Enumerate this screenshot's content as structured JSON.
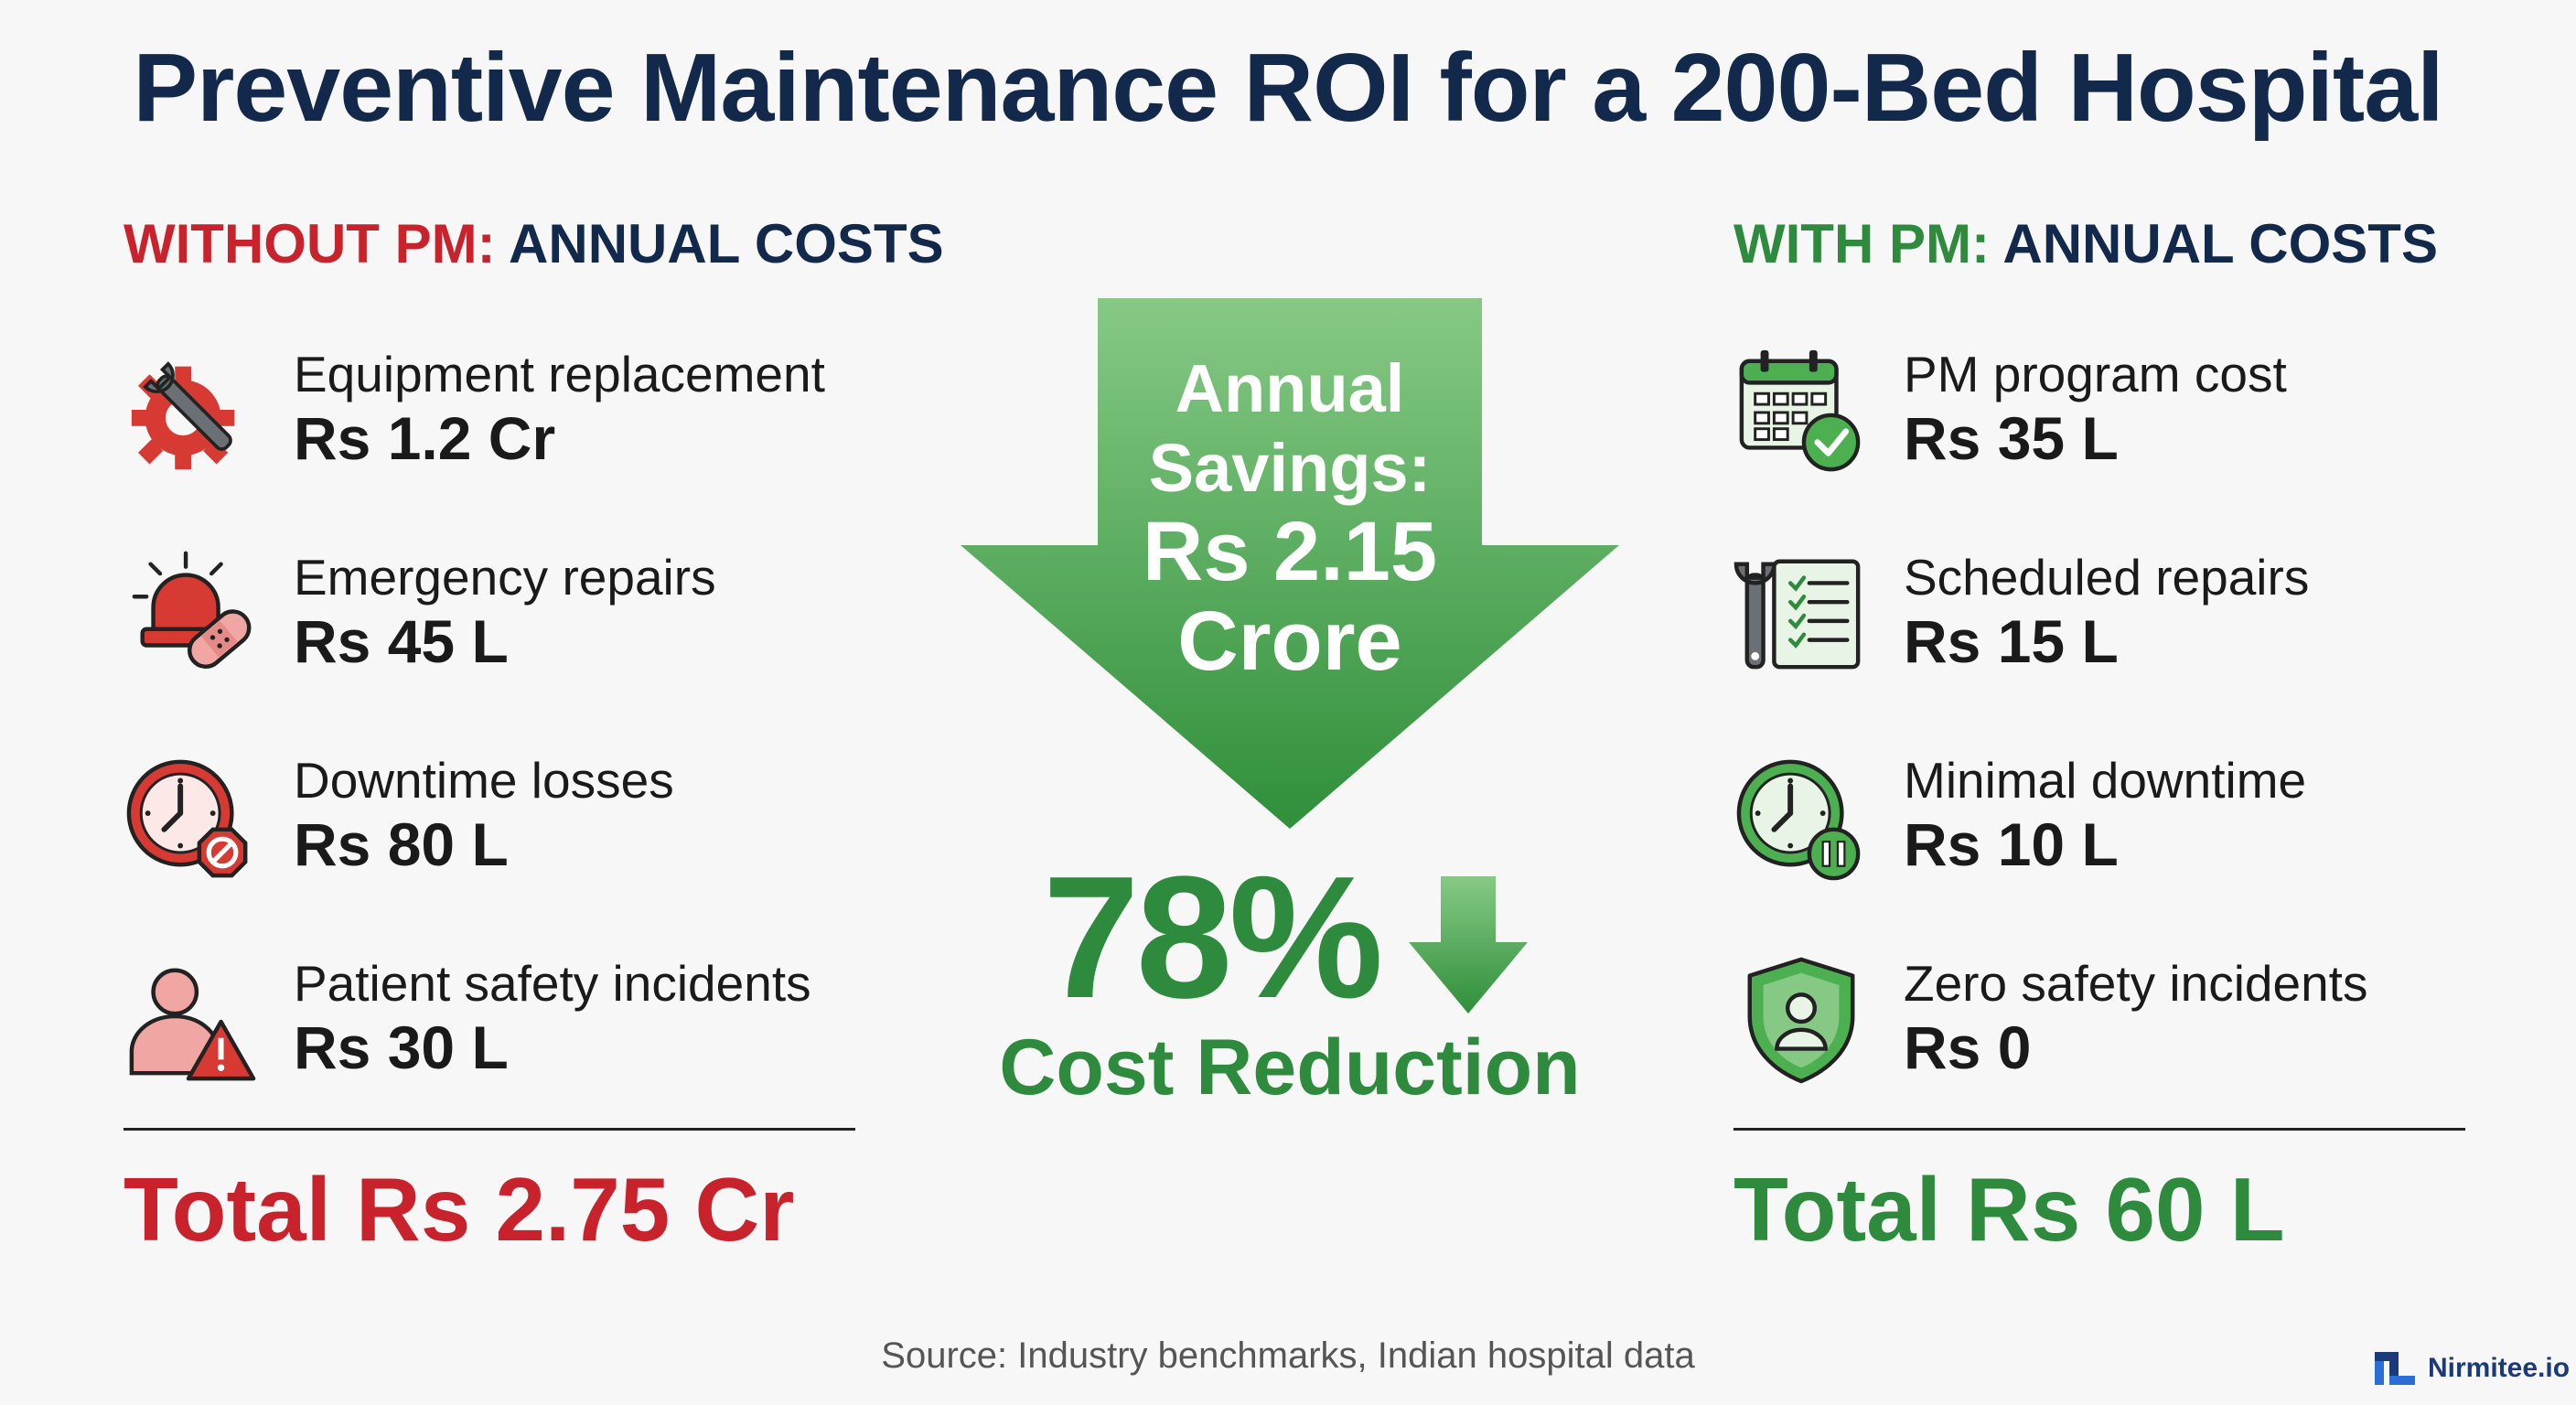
{
  "title": "Preventive Maintenance ROI for a 200-Bed Hospital",
  "left": {
    "header_accent": "WITHOUT PM:",
    "header_rest": " ANNUAL COSTS",
    "items": [
      {
        "label": "Equipment replacement",
        "value": "Rs 1.2 Cr",
        "icon": "gear-wrench-icon"
      },
      {
        "label": "Emergency repairs",
        "value": "Rs 45 L",
        "icon": "alarm-bandage-icon"
      },
      {
        "label": "Downtime losses",
        "value": "Rs 80 L",
        "icon": "clock-stop-icon"
      },
      {
        "label": "Patient safety incidents",
        "value": "Rs 30 L",
        "icon": "person-warning-icon"
      }
    ],
    "total": "Total Rs 2.75 Cr"
  },
  "center": {
    "savings_line1": "Annual",
    "savings_line2": "Savings:",
    "savings_line3": "Rs 2.15",
    "savings_line4": "Crore",
    "percent": "78%",
    "percent_label": "Cost Reduction"
  },
  "right": {
    "header_accent": "WITH PM:",
    "header_rest": " ANNUAL COSTS",
    "items": [
      {
        "label": "PM program cost",
        "value": "Rs 35 L",
        "icon": "calendar-check-icon"
      },
      {
        "label": "Scheduled repairs",
        "value": "Rs 15 L",
        "icon": "wrench-checklist-icon"
      },
      {
        "label": "Minimal downtime",
        "value": "Rs 10 L",
        "icon": "clock-pause-icon"
      },
      {
        "label": "Zero safety incidents",
        "value": "Rs 0",
        "icon": "shield-person-icon"
      }
    ],
    "total": "Total Rs 60 L"
  },
  "source": "Source: Industry benchmarks, Indian hospital data",
  "brand": "Nirmitee.io",
  "colors": {
    "red": "#c8232c",
    "green": "#2e8b3e",
    "navy": "#13294b"
  }
}
